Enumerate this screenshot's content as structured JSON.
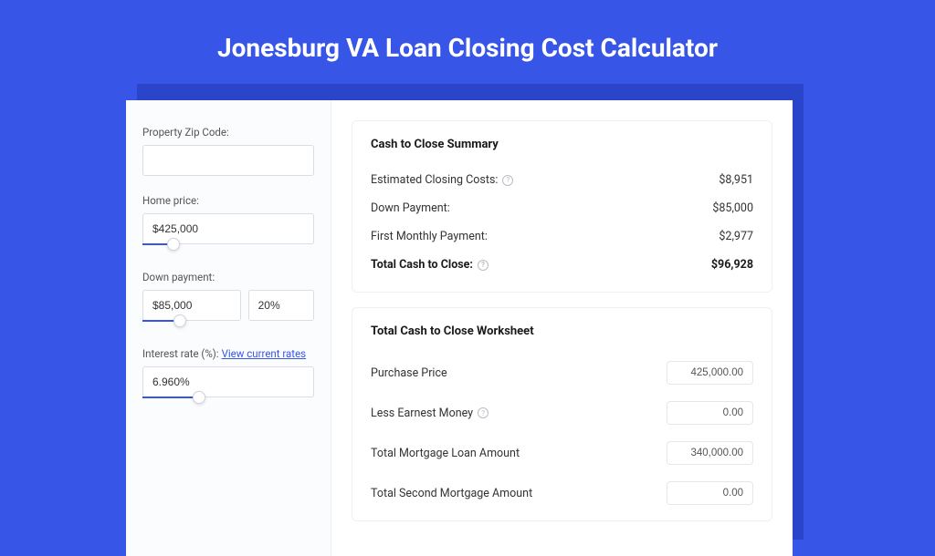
{
  "page": {
    "title": "Jonesburg VA Loan Closing Cost Calculator",
    "background_color": "#3755e6",
    "card_shadow_color": "#2a45c9",
    "card_bg": "#ffffff",
    "left_bg": "#fbfcfe"
  },
  "inputs": {
    "zip": {
      "label": "Property Zip Code:",
      "value": ""
    },
    "home_price": {
      "label": "Home price:",
      "value": "$425,000",
      "slider_pct": 18
    },
    "down_payment": {
      "label": "Down payment:",
      "value": "$85,000",
      "pct_value": "20%",
      "slider_pct": 22
    },
    "interest_rate": {
      "label": "Interest rate (%):",
      "link_text": "View current rates",
      "value": "6.960%",
      "slider_pct": 33
    }
  },
  "summary": {
    "title": "Cash to Close Summary",
    "rows": [
      {
        "label": "Estimated Closing Costs:",
        "value": "$8,951",
        "help": true,
        "bold": false
      },
      {
        "label": "Down Payment:",
        "value": "$85,000",
        "help": false,
        "bold": false
      },
      {
        "label": "First Monthly Payment:",
        "value": "$2,977",
        "help": false,
        "bold": false
      },
      {
        "label": "Total Cash to Close:",
        "value": "$96,928",
        "help": true,
        "bold": true
      }
    ]
  },
  "worksheet": {
    "title": "Total Cash to Close Worksheet",
    "rows": [
      {
        "label": "Purchase Price",
        "value": "425,000.00",
        "help": false
      },
      {
        "label": "Less Earnest Money",
        "value": "0.00",
        "help": true
      },
      {
        "label": "Total Mortgage Loan Amount",
        "value": "340,000.00",
        "help": false
      },
      {
        "label": "Total Second Mortgage Amount",
        "value": "0.00",
        "help": false
      }
    ]
  }
}
